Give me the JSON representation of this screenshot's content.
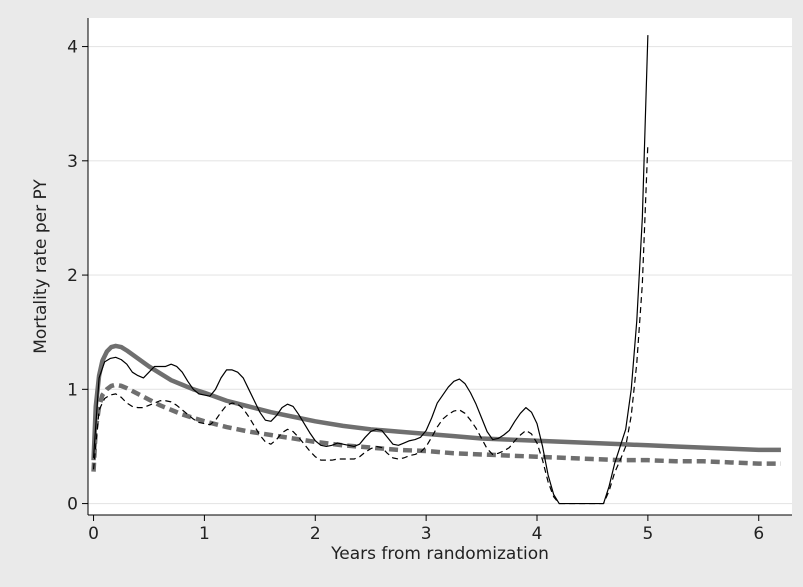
{
  "chart_data": {
    "type": "line",
    "title": "",
    "xlabel": "Years from randomization",
    "ylabel": "Mortality rate per PY",
    "xlim": [
      -0.05,
      6.3
    ],
    "ylim": [
      -0.1,
      4.25
    ],
    "x_ticks": [
      0,
      1,
      2,
      3,
      4,
      5,
      6
    ],
    "y_ticks": [
      0,
      1,
      2,
      3,
      4
    ],
    "x_tick_labels": [
      "0",
      "1",
      "2",
      "3",
      "4",
      "5",
      "6"
    ],
    "y_tick_labels": [
      "0",
      "1",
      "2",
      "3",
      "4"
    ],
    "grid": "horizontal",
    "legend": "none",
    "colors": {
      "background": "#eaeaea",
      "plot_area": "#ffffff",
      "gridline": "#e6e6e6",
      "axis": "#000000",
      "observed": "#000000",
      "fitted": "#6f6f6f"
    },
    "series": [
      {
        "style": "solid-thin",
        "color": "#000000",
        "x": [
          0.0,
          0.05,
          0.1,
          0.15,
          0.2,
          0.25,
          0.3,
          0.35,
          0.4,
          0.45,
          0.5,
          0.55,
          0.6,
          0.65,
          0.7,
          0.75,
          0.8,
          0.85,
          0.9,
          0.95,
          1.0,
          1.05,
          1.1,
          1.15,
          1.2,
          1.25,
          1.3,
          1.35,
          1.4,
          1.45,
          1.5,
          1.55,
          1.6,
          1.65,
          1.7,
          1.75,
          1.8,
          1.85,
          1.9,
          1.95,
          2.0,
          2.05,
          2.1,
          2.15,
          2.2,
          2.25,
          2.3,
          2.35,
          2.4,
          2.45,
          2.5,
          2.55,
          2.6,
          2.65,
          2.7,
          2.75,
          2.8,
          2.85,
          2.9,
          2.95,
          3.0,
          3.05,
          3.1,
          3.15,
          3.2,
          3.25,
          3.3,
          3.35,
          3.4,
          3.45,
          3.5,
          3.55,
          3.6,
          3.65,
          3.7,
          3.75,
          3.8,
          3.85,
          3.9,
          3.95,
          4.0,
          4.05,
          4.1,
          4.15,
          4.2,
          4.3,
          4.4,
          4.5,
          4.6,
          4.65,
          4.7,
          4.75,
          4.8,
          4.85,
          4.9,
          4.95,
          5.0
        ],
        "y": [
          0.4,
          1.1,
          1.24,
          1.27,
          1.28,
          1.26,
          1.22,
          1.15,
          1.12,
          1.1,
          1.15,
          1.2,
          1.2,
          1.2,
          1.22,
          1.2,
          1.15,
          1.07,
          1.0,
          0.96,
          0.95,
          0.94,
          1.0,
          1.1,
          1.17,
          1.17,
          1.15,
          1.1,
          1.0,
          0.9,
          0.8,
          0.73,
          0.72,
          0.77,
          0.84,
          0.87,
          0.85,
          0.78,
          0.7,
          0.62,
          0.55,
          0.51,
          0.5,
          0.51,
          0.53,
          0.52,
          0.51,
          0.5,
          0.52,
          0.58,
          0.63,
          0.65,
          0.64,
          0.58,
          0.52,
          0.51,
          0.53,
          0.55,
          0.56,
          0.58,
          0.64,
          0.75,
          0.88,
          0.95,
          1.02,
          1.07,
          1.09,
          1.05,
          0.97,
          0.87,
          0.75,
          0.63,
          0.56,
          0.57,
          0.6,
          0.64,
          0.72,
          0.79,
          0.84,
          0.8,
          0.7,
          0.5,
          0.25,
          0.08,
          0.0,
          0.0,
          0.0,
          0.0,
          0.0,
          0.15,
          0.35,
          0.5,
          0.65,
          1.0,
          1.6,
          2.5,
          4.1
        ]
      },
      {
        "style": "dashed-thin",
        "color": "#000000",
        "x": [
          0.0,
          0.05,
          0.1,
          0.15,
          0.2,
          0.25,
          0.3,
          0.35,
          0.4,
          0.45,
          0.5,
          0.55,
          0.6,
          0.65,
          0.7,
          0.75,
          0.8,
          0.85,
          0.9,
          0.95,
          1.0,
          1.05,
          1.1,
          1.15,
          1.2,
          1.25,
          1.3,
          1.35,
          1.4,
          1.45,
          1.5,
          1.55,
          1.6,
          1.65,
          1.7,
          1.75,
          1.8,
          1.85,
          1.9,
          1.95,
          2.0,
          2.05,
          2.1,
          2.15,
          2.2,
          2.25,
          2.3,
          2.35,
          2.4,
          2.45,
          2.5,
          2.55,
          2.6,
          2.65,
          2.7,
          2.75,
          2.8,
          2.85,
          2.9,
          2.95,
          3.0,
          3.05,
          3.1,
          3.15,
          3.2,
          3.25,
          3.3,
          3.35,
          3.4,
          3.45,
          3.5,
          3.55,
          3.6,
          3.65,
          3.7,
          3.75,
          3.8,
          3.85,
          3.9,
          3.95,
          4.0,
          4.05,
          4.1,
          4.15,
          4.2,
          4.3,
          4.4,
          4.5,
          4.6,
          4.65,
          4.7,
          4.75,
          4.8,
          4.85,
          4.9,
          4.95,
          5.0
        ],
        "y": [
          0.3,
          0.82,
          0.92,
          0.95,
          0.96,
          0.93,
          0.88,
          0.85,
          0.84,
          0.84,
          0.86,
          0.88,
          0.9,
          0.9,
          0.89,
          0.86,
          0.82,
          0.78,
          0.74,
          0.71,
          0.7,
          0.69,
          0.73,
          0.8,
          0.86,
          0.88,
          0.87,
          0.83,
          0.76,
          0.68,
          0.6,
          0.54,
          0.52,
          0.56,
          0.62,
          0.65,
          0.63,
          0.58,
          0.52,
          0.46,
          0.41,
          0.38,
          0.38,
          0.38,
          0.39,
          0.39,
          0.39,
          0.39,
          0.41,
          0.45,
          0.48,
          0.5,
          0.49,
          0.44,
          0.4,
          0.39,
          0.4,
          0.42,
          0.43,
          0.45,
          0.5,
          0.58,
          0.67,
          0.74,
          0.78,
          0.81,
          0.82,
          0.79,
          0.73,
          0.66,
          0.57,
          0.48,
          0.43,
          0.44,
          0.46,
          0.49,
          0.55,
          0.6,
          0.64,
          0.61,
          0.53,
          0.38,
          0.19,
          0.06,
          0.0,
          0.0,
          0.0,
          0.0,
          0.0,
          0.11,
          0.27,
          0.38,
          0.5,
          0.77,
          1.23,
          1.92,
          3.15
        ]
      },
      {
        "style": "solid-thick",
        "color": "#6f6f6f",
        "x": [
          0.0,
          0.02,
          0.05,
          0.08,
          0.12,
          0.16,
          0.2,
          0.25,
          0.3,
          0.4,
          0.5,
          0.6,
          0.7,
          0.8,
          0.9,
          1.0,
          1.2,
          1.4,
          1.6,
          1.8,
          2.0,
          2.25,
          2.5,
          2.75,
          3.0,
          3.25,
          3.5,
          3.75,
          4.0,
          4.25,
          4.5,
          4.75,
          5.0,
          5.25,
          5.5,
          5.75,
          6.0,
          6.2
        ],
        "y": [
          0.38,
          0.85,
          1.12,
          1.25,
          1.33,
          1.37,
          1.38,
          1.37,
          1.34,
          1.27,
          1.2,
          1.14,
          1.08,
          1.04,
          1.0,
          0.97,
          0.9,
          0.85,
          0.8,
          0.76,
          0.72,
          0.68,
          0.65,
          0.63,
          0.61,
          0.59,
          0.57,
          0.56,
          0.55,
          0.54,
          0.53,
          0.52,
          0.51,
          0.5,
          0.49,
          0.48,
          0.47,
          0.47
        ]
      },
      {
        "style": "dashed-thick",
        "color": "#6f6f6f",
        "x": [
          0.0,
          0.02,
          0.05,
          0.08,
          0.12,
          0.16,
          0.2,
          0.25,
          0.3,
          0.4,
          0.5,
          0.6,
          0.7,
          0.8,
          0.9,
          1.0,
          1.2,
          1.4,
          1.6,
          1.8,
          2.0,
          2.25,
          2.5,
          2.75,
          3.0,
          3.25,
          3.5,
          3.75,
          4.0,
          4.25,
          4.5,
          4.75,
          5.0,
          5.25,
          5.5,
          5.75,
          6.0,
          6.2
        ],
        "y": [
          0.28,
          0.65,
          0.85,
          0.95,
          1.0,
          1.03,
          1.04,
          1.03,
          1.01,
          0.96,
          0.91,
          0.86,
          0.82,
          0.78,
          0.75,
          0.72,
          0.67,
          0.63,
          0.6,
          0.57,
          0.54,
          0.51,
          0.49,
          0.47,
          0.46,
          0.44,
          0.43,
          0.42,
          0.41,
          0.4,
          0.39,
          0.38,
          0.38,
          0.37,
          0.37,
          0.36,
          0.35,
          0.35
        ]
      }
    ]
  }
}
